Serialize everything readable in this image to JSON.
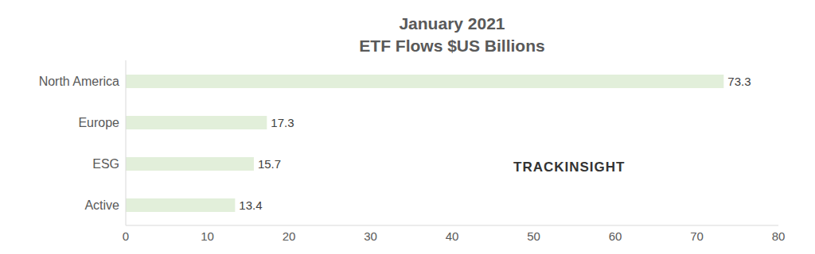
{
  "chart_data": {
    "type": "bar",
    "title": "January 2021",
    "subtitle": "ETF Flows $US Billions",
    "categories": [
      "North America",
      "Europe",
      "ESG",
      "Active"
    ],
    "values": [
      73.3,
      17.3,
      15.7,
      13.4
    ],
    "color": "#e2efda",
    "orientation": "horizontal",
    "xlim": [
      0,
      80
    ],
    "xticks": [
      0,
      10,
      20,
      30,
      40,
      50,
      60,
      70,
      80
    ],
    "data_labels": true,
    "grid": false,
    "annotations": [
      "TRACKINSIGHT"
    ]
  }
}
